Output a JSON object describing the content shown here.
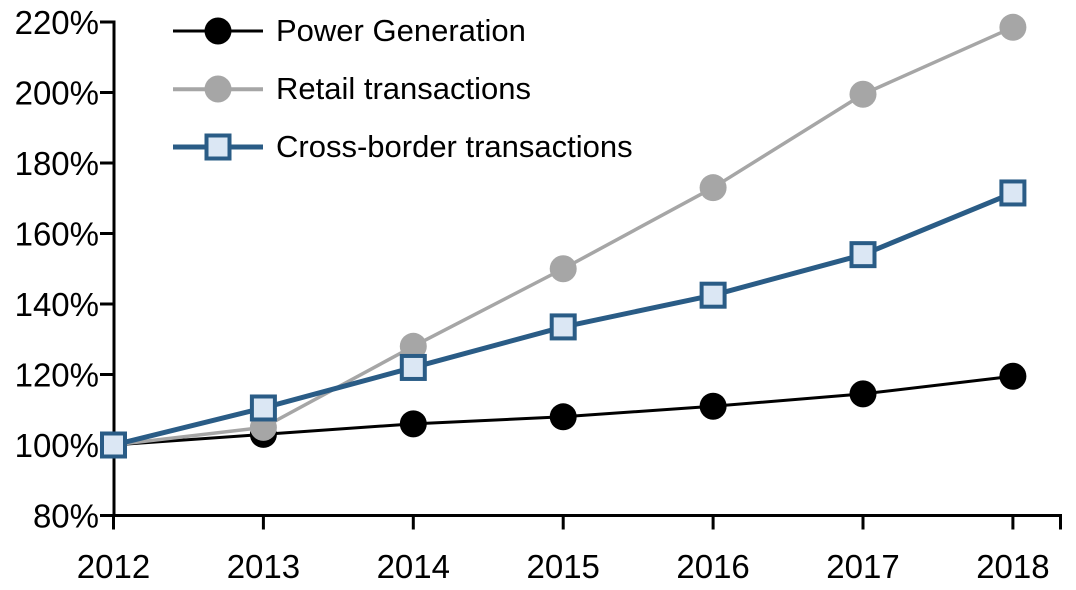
{
  "chart_data": {
    "type": "line",
    "title": "",
    "xlabel": "",
    "ylabel": "",
    "categories": [
      "2012",
      "2013",
      "2014",
      "2015",
      "2016",
      "2017",
      "2018"
    ],
    "y_min": 80,
    "y_max": 220,
    "y_tick_step": 20,
    "y_tick_labels": [
      "80%",
      "100%",
      "120%",
      "140%",
      "160%",
      "180%",
      "200%",
      "220%"
    ],
    "grid": false,
    "legend_position": "top-left",
    "axis_color": "#000000",
    "series": [
      {
        "name": "Power Generation",
        "color": "#000000",
        "marker": "circle",
        "marker_fill": "#000000",
        "line_width": 3,
        "values": [
          100,
          103,
          106,
          108,
          111,
          114.5,
          119.5
        ]
      },
      {
        "name": "Retail transactions",
        "color": "#a6a6a6",
        "marker": "circle",
        "marker_fill": "#a6a6a6",
        "line_width": 3.5,
        "values": [
          100,
          105,
          128,
          150,
          173,
          199.5,
          218.5
        ]
      },
      {
        "name": "Cross-border transactions",
        "color": "#2a5c86",
        "marker": "square",
        "marker_fill": "#dbe7f4",
        "line_width": 5,
        "values": [
          100,
          110.5,
          122,
          133.5,
          142.5,
          154,
          171.5
        ]
      }
    ]
  }
}
